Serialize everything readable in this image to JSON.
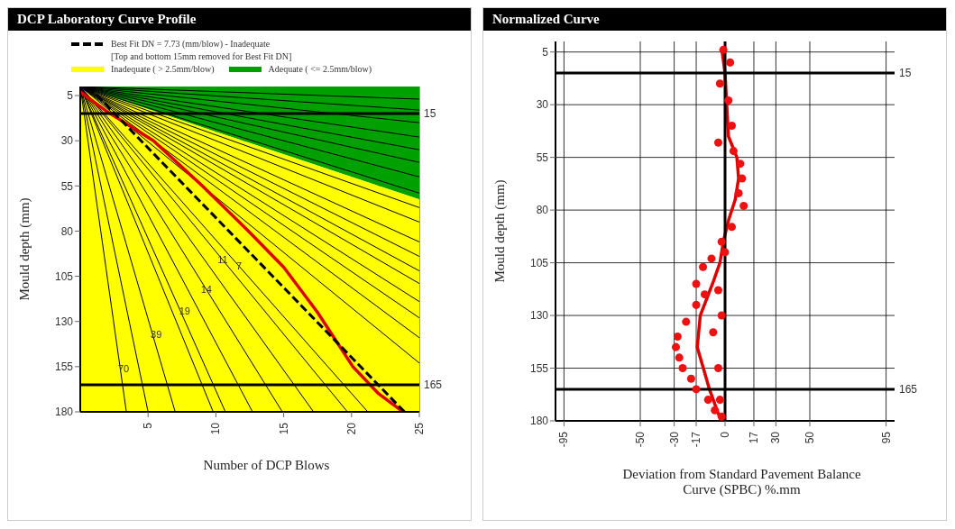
{
  "chart_data": [
    {
      "type": "line",
      "title": "DCP Laboratory Curve Profile",
      "xlabel": "Number of DCP Blows",
      "ylabel": "Mould depth (mm)",
      "legend": "top",
      "stacked": true,
      "grid": true,
      "xlim": [
        0,
        25
      ],
      "xticks": [
        5,
        10,
        15,
        20,
        25
      ],
      "ylim": [
        180,
        0
      ],
      "yticks": [
        5,
        30,
        55,
        80,
        105,
        130,
        155,
        180
      ],
      "x": [
        0,
        25
      ],
      "series": [
        {
          "type": "area",
          "name": "Adequate ( <= 2.5mm/blow)",
          "color": "#00a000",
          "values": [
            0,
            62.5
          ]
        },
        {
          "type": "area",
          "name": "Inadequate ( > 2.5mm/blow)",
          "color": "#ffff00",
          "values": [
            180,
            117.5
          ]
        },
        {
          "color": "#000000",
          "x": [
            0,
            3.4
          ],
          "values": [
            0,
            180
          ]
        },
        {
          "color": "#000000",
          "x": [
            0,
            5
          ],
          "values": [
            0,
            180
          ]
        },
        {
          "color": "#000000",
          "x": [
            0,
            7
          ],
          "values": [
            0,
            180
          ]
        },
        {
          "color": "#000000",
          "x": [
            0,
            9.8
          ],
          "values": [
            0,
            180
          ]
        },
        {
          "color": "#000000",
          "x": [
            0,
            10.7
          ],
          "values": [
            0,
            180
          ]
        },
        {
          "color": "#000000",
          "x": [
            0,
            12.7
          ],
          "values": [
            0,
            180
          ]
        },
        {
          "color": "#000000",
          "x": [
            0,
            14.9
          ],
          "values": [
            0,
            180
          ]
        },
        {
          "color": "#000000",
          "x": [
            0,
            17.2
          ],
          "values": [
            0,
            180
          ]
        },
        {
          "color": "#000000",
          "x": [
            0,
            19.7
          ],
          "values": [
            0,
            180
          ]
        },
        {
          "color": "#000000",
          "x": [
            0,
            21.2
          ],
          "values": [
            0,
            180
          ]
        },
        {
          "color": "#000000",
          "x": [
            0,
            25
          ],
          "values": [
            0,
            153
          ]
        },
        {
          "color": "#000000",
          "x": [
            0,
            25
          ],
          "values": [
            0,
            139
          ]
        },
        {
          "color": "#000000",
          "x": [
            0,
            25
          ],
          "values": [
            0,
            128
          ]
        },
        {
          "color": "#000000",
          "x": [
            0,
            25
          ],
          "values": [
            0,
            119
          ]
        },
        {
          "color": "#000000",
          "x": [
            0,
            25
          ],
          "values": [
            0,
            109
          ]
        },
        {
          "color": "#000000",
          "x": [
            0,
            25
          ],
          "values": [
            0,
            102
          ]
        },
        {
          "color": "#000000",
          "x": [
            0,
            25
          ],
          "values": [
            0,
            94
          ]
        },
        {
          "color": "#000000",
          "x": [
            0,
            25
          ],
          "values": [
            0,
            86
          ]
        },
        {
          "color": "#000000",
          "x": [
            0,
            25
          ],
          "values": [
            0,
            75
          ]
        },
        {
          "color": "#000000",
          "x": [
            0,
            25
          ],
          "values": [
            0,
            67
          ]
        },
        {
          "color": "#000000",
          "x": [
            0,
            25
          ],
          "values": [
            0,
            59
          ]
        },
        {
          "color": "#000000",
          "x": [
            0,
            25
          ],
          "values": [
            0,
            50
          ]
        },
        {
          "color": "#000000",
          "x": [
            0,
            25
          ],
          "values": [
            0,
            42
          ]
        },
        {
          "color": "#000000",
          "x": [
            0,
            25
          ],
          "values": [
            0,
            35
          ]
        },
        {
          "color": "#000000",
          "x": [
            0,
            25
          ],
          "values": [
            0,
            28
          ]
        },
        {
          "color": "#000000",
          "x": [
            0,
            25
          ],
          "values": [
            0,
            20
          ]
        },
        {
          "color": "#000000",
          "x": [
            0,
            25
          ],
          "values": [
            0,
            13
          ]
        },
        {
          "color": "#000000",
          "x": [
            0,
            25
          ],
          "values": [
            0,
            7
          ]
        },
        {
          "color": "#dd0000",
          "x": [
            0,
            2,
            5.4,
            9,
            12.4,
            15,
            17.5,
            20.1,
            22,
            23.8
          ],
          "values": [
            3,
            14,
            30,
            55,
            80,
            100,
            125,
            155,
            170,
            180
          ]
        },
        {
          "name": "Best Fit DN = 7.73 (mm/blow) - Inadequate",
          "color": "#000000",
          "line_style": "dashed",
          "x": [
            0.6,
            23.9
          ],
          "values": [
            0,
            180
          ]
        }
      ],
      "ref_lines": [
        {
          "axis": "y",
          "value": 15,
          "label": "15"
        },
        {
          "axis": "y",
          "value": 165,
          "label": "165"
        }
      ],
      "annotations": [
        "[Top and bottom 15mm removed for Best Fit DN]",
        {
          "text": "70",
          "x": 3.2,
          "y": 156
        },
        {
          "text": "39",
          "x": 5.6,
          "y": 137
        },
        {
          "text": "19",
          "x": 7.7,
          "y": 124
        },
        {
          "text": "14",
          "x": 9.3,
          "y": 112
        },
        {
          "text": "11",
          "x": 10.5,
          "y": 96
        },
        {
          "text": "7",
          "x": 11.7,
          "y": 99.3
        }
      ]
    },
    {
      "type": "line",
      "title": "Normalized Curve",
      "xlabel": "Deviation from Standard Pavement Balance Curve (SPBC) %.mm",
      "ylabel": "Mould depth (mm)",
      "grid": true,
      "xlim": [
        -100,
        100
      ],
      "xticks": [
        -95,
        -50,
        -30,
        -17,
        0,
        17,
        30,
        50,
        95
      ],
      "ylim": [
        180,
        0
      ],
      "yticks": [
        5,
        30,
        55,
        80,
        105,
        130,
        155,
        180
      ],
      "series": [
        {
          "type": "scatter",
          "color": "#ee1111",
          "marker": "circle",
          "x": [
            -1,
            3,
            -3,
            2,
            4,
            -4,
            5,
            9,
            10,
            8,
            11,
            4,
            -2,
            0,
            -8,
            -13,
            -17,
            -12,
            -17,
            -23,
            -28,
            -29,
            -27,
            -25,
            -20,
            -17,
            -10,
            -4,
            -7,
            -2,
            -4,
            -3,
            -6,
            -2
          ],
          "values": [
            4,
            10,
            20,
            28,
            40,
            48,
            52,
            58,
            65,
            72,
            78,
            88,
            95,
            100,
            103,
            107,
            115,
            120,
            125,
            133,
            140,
            145,
            150,
            155,
            160,
            165,
            170,
            118,
            138,
            130,
            155,
            170,
            175,
            178
          ]
        },
        {
          "color": "#dd0000",
          "x": [
            -2,
            0,
            1,
            2,
            7,
            8,
            6,
            2,
            -1,
            -3,
            -7.4,
            -14.6,
            -16.4,
            -12.8,
            -9.2,
            -4.7,
            -2.3
          ],
          "values": [
            3,
            15,
            30,
            45,
            55,
            65,
            75,
            85,
            95,
            105,
            115,
            130,
            145,
            155,
            165,
            175,
            180
          ]
        }
      ],
      "ref_lines": [
        {
          "axis": "y",
          "value": 15,
          "label": "15"
        },
        {
          "axis": "y",
          "value": 165,
          "label": "165"
        },
        {
          "axis": "x",
          "value": 0,
          "label": null
        }
      ]
    }
  ]
}
